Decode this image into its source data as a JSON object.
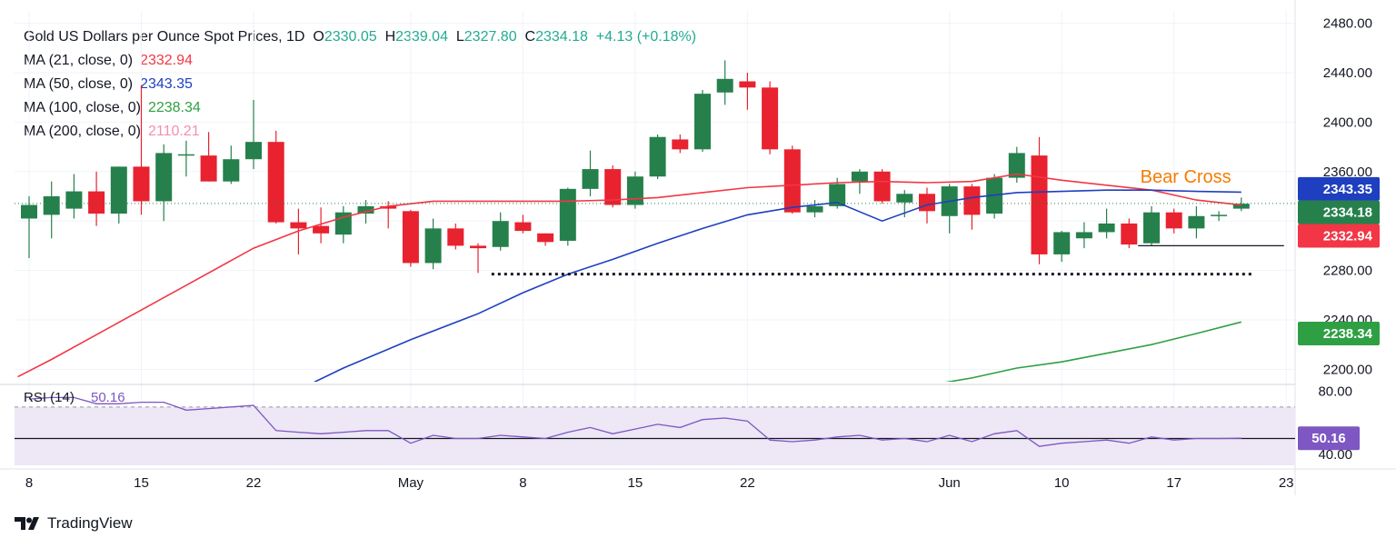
{
  "header": {
    "symbol": "Gold US Dollars per Ounce Spot Prices, 1D",
    "open_label": "O",
    "open": "2330.05",
    "high_label": "H",
    "high": "2339.04",
    "low_label": "L",
    "low": "2327.80",
    "close_label": "C",
    "close": "2334.18",
    "change": "+4.13 (+0.18%)"
  },
  "legend": [
    {
      "label": "MA (21, close, 0)",
      "value": "2332.94",
      "color": "#f23645"
    },
    {
      "label": "MA (50, close, 0)",
      "value": "2343.35",
      "color": "#1e3fbf"
    },
    {
      "label": "MA (100, close, 0)",
      "value": "2238.34",
      "color": "#2ea043"
    },
    {
      "label": "MA (200, close, 0)",
      "value": "2110.21",
      "color": "#f48fb1"
    }
  ],
  "chart_data": {
    "type": "candlestick",
    "title": "Gold US Dollars per Ounce Spot Prices, 1D",
    "ylim": [
      2190,
      2490
    ],
    "y_ticks": [
      2200,
      2240,
      2280,
      2320,
      2360,
      2400,
      2440,
      2480
    ],
    "y_tick_labels": [
      "2200.00",
      "2240.00",
      "2280.00",
      "2320.00",
      "2360.00",
      "2400.00",
      "2440.00",
      "2480.00"
    ],
    "x_ticks": [
      {
        "index": 0,
        "label": "8"
      },
      {
        "index": 5,
        "label": "15"
      },
      {
        "index": 10,
        "label": "22"
      },
      {
        "index": 17,
        "label": "May"
      },
      {
        "index": 22,
        "label": "8"
      },
      {
        "index": 27,
        "label": "15"
      },
      {
        "index": 32,
        "label": "22"
      },
      {
        "index": 41,
        "label": "Jun"
      },
      {
        "index": 46,
        "label": "10"
      },
      {
        "index": 51,
        "label": "17"
      },
      {
        "index": 56,
        "label": "23"
      }
    ],
    "candles": [
      {
        "o": 2322,
        "h": 2340,
        "l": 2290,
        "c": 2333
      },
      {
        "o": 2325,
        "h": 2352,
        "l": 2306,
        "c": 2340
      },
      {
        "o": 2330,
        "h": 2358,
        "l": 2322,
        "c": 2344
      },
      {
        "o": 2344,
        "h": 2360,
        "l": 2316,
        "c": 2326
      },
      {
        "o": 2326,
        "h": 2364,
        "l": 2318,
        "c": 2364
      },
      {
        "o": 2364,
        "h": 2430,
        "l": 2325,
        "c": 2336
      },
      {
        "o": 2336,
        "h": 2382,
        "l": 2320,
        "c": 2375
      },
      {
        "o": 2374,
        "h": 2385,
        "l": 2356,
        "c": 2374
      },
      {
        "o": 2373,
        "h": 2392,
        "l": 2352,
        "c": 2352
      },
      {
        "o": 2352,
        "h": 2381,
        "l": 2350,
        "c": 2370
      },
      {
        "o": 2370,
        "h": 2418,
        "l": 2362,
        "c": 2384
      },
      {
        "o": 2384,
        "h": 2393,
        "l": 2318,
        "c": 2319
      },
      {
        "o": 2319,
        "h": 2330,
        "l": 2293,
        "c": 2314
      },
      {
        "o": 2316,
        "h": 2331,
        "l": 2302,
        "c": 2310
      },
      {
        "o": 2309,
        "h": 2332,
        "l": 2302,
        "c": 2327
      },
      {
        "o": 2326,
        "h": 2337,
        "l": 2318,
        "c": 2332
      },
      {
        "o": 2332,
        "h": 2336,
        "l": 2314,
        "c": 2330
      },
      {
        "o": 2328,
        "h": 2329,
        "l": 2283,
        "c": 2286
      },
      {
        "o": 2286,
        "h": 2322,
        "l": 2281,
        "c": 2314
      },
      {
        "o": 2314,
        "h": 2318,
        "l": 2297,
        "c": 2300
      },
      {
        "o": 2300,
        "h": 2302,
        "l": 2278,
        "c": 2298
      },
      {
        "o": 2299,
        "h": 2327,
        "l": 2296,
        "c": 2320
      },
      {
        "o": 2319,
        "h": 2325,
        "l": 2310,
        "c": 2312
      },
      {
        "o": 2310,
        "h": 2310,
        "l": 2300,
        "c": 2303
      },
      {
        "o": 2304,
        "h": 2347,
        "l": 2300,
        "c": 2346
      },
      {
        "o": 2346,
        "h": 2377,
        "l": 2340,
        "c": 2362
      },
      {
        "o": 2362,
        "h": 2365,
        "l": 2331,
        "c": 2333
      },
      {
        "o": 2333,
        "h": 2360,
        "l": 2330,
        "c": 2356
      },
      {
        "o": 2356,
        "h": 2390,
        "l": 2354,
        "c": 2388
      },
      {
        "o": 2386,
        "h": 2390,
        "l": 2375,
        "c": 2378
      },
      {
        "o": 2378,
        "h": 2426,
        "l": 2376,
        "c": 2423
      },
      {
        "o": 2424,
        "h": 2450,
        "l": 2414,
        "c": 2435
      },
      {
        "o": 2433,
        "h": 2440,
        "l": 2410,
        "c": 2428
      },
      {
        "o": 2428,
        "h": 2433,
        "l": 2374,
        "c": 2378
      },
      {
        "o": 2378,
        "h": 2381,
        "l": 2326,
        "c": 2327
      },
      {
        "o": 2327,
        "h": 2337,
        "l": 2323,
        "c": 2332
      },
      {
        "o": 2332,
        "h": 2355,
        "l": 2330,
        "c": 2350
      },
      {
        "o": 2352,
        "h": 2362,
        "l": 2342,
        "c": 2360
      },
      {
        "o": 2360,
        "h": 2362,
        "l": 2334,
        "c": 2336
      },
      {
        "o": 2335,
        "h": 2345,
        "l": 2323,
        "c": 2342
      },
      {
        "o": 2342,
        "h": 2347,
        "l": 2318,
        "c": 2328
      },
      {
        "o": 2324,
        "h": 2350,
        "l": 2310,
        "c": 2348
      },
      {
        "o": 2348,
        "h": 2350,
        "l": 2313,
        "c": 2325
      },
      {
        "o": 2326,
        "h": 2358,
        "l": 2322,
        "c": 2355
      },
      {
        "o": 2355,
        "h": 2380,
        "l": 2351,
        "c": 2375
      },
      {
        "o": 2373,
        "h": 2388,
        "l": 2285,
        "c": 2293
      },
      {
        "o": 2293,
        "h": 2312,
        "l": 2287,
        "c": 2311
      },
      {
        "o": 2306,
        "h": 2319,
        "l": 2298,
        "c": 2311
      },
      {
        "o": 2311,
        "h": 2330,
        "l": 2306,
        "c": 2318
      },
      {
        "o": 2318,
        "h": 2322,
        "l": 2298,
        "c": 2301
      },
      {
        "o": 2302,
        "h": 2332,
        "l": 2300,
        "c": 2327
      },
      {
        "o": 2327,
        "h": 2330,
        "l": 2310,
        "c": 2314
      },
      {
        "o": 2314,
        "h": 2332,
        "l": 2306,
        "c": 2324
      },
      {
        "o": 2324,
        "h": 2328,
        "l": 2320,
        "c": 2325
      },
      {
        "o": 2330,
        "h": 2339,
        "l": 2328,
        "c": 2334
      }
    ],
    "moving_averages": [
      {
        "name": "MA 21",
        "color": "#f23645",
        "points": [
          [
            -0.5,
            2194
          ],
          [
            1,
            2208
          ],
          [
            4,
            2238
          ],
          [
            7,
            2268
          ],
          [
            10,
            2298
          ],
          [
            12,
            2312
          ],
          [
            14,
            2323
          ],
          [
            16,
            2332
          ],
          [
            18,
            2336
          ],
          [
            20,
            2336
          ],
          [
            22,
            2336
          ],
          [
            24,
            2336
          ],
          [
            26,
            2337
          ],
          [
            28,
            2339
          ],
          [
            30,
            2343
          ],
          [
            32,
            2347
          ],
          [
            34,
            2349
          ],
          [
            36,
            2351
          ],
          [
            38,
            2352
          ],
          [
            40,
            2351
          ],
          [
            42,
            2352
          ],
          [
            44,
            2358
          ],
          [
            46,
            2353
          ],
          [
            48,
            2349
          ],
          [
            50,
            2345
          ],
          [
            52,
            2337
          ],
          [
            54,
            2332.94
          ]
        ]
      },
      {
        "name": "MA 50",
        "color": "#1e3fbf",
        "points": [
          [
            11.6,
            2180
          ],
          [
            14,
            2201
          ],
          [
            17,
            2224
          ],
          [
            20,
            2245
          ],
          [
            22,
            2262
          ],
          [
            24,
            2277
          ],
          [
            26,
            2289
          ],
          [
            28,
            2302
          ],
          [
            30,
            2314
          ],
          [
            32,
            2325
          ],
          [
            34,
            2331
          ],
          [
            36,
            2335
          ],
          [
            38,
            2320
          ],
          [
            40,
            2333
          ],
          [
            42,
            2339
          ],
          [
            44,
            2343
          ],
          [
            46,
            2344
          ],
          [
            48,
            2345
          ],
          [
            50,
            2345
          ],
          [
            52,
            2344
          ],
          [
            54,
            2343.35
          ]
        ]
      },
      {
        "name": "MA 100",
        "color": "#2ea043",
        "points": [
          [
            37.8,
            2180
          ],
          [
            40,
            2187
          ],
          [
            42,
            2193
          ],
          [
            44,
            2201
          ],
          [
            46,
            2206
          ],
          [
            48,
            2213
          ],
          [
            50,
            2220
          ],
          [
            52,
            2229
          ],
          [
            54,
            2238.34
          ]
        ]
      }
    ],
    "reference_lines": [
      {
        "y": 2300,
        "from": 49.4,
        "to": 55.9,
        "style": "solid"
      },
      {
        "y": 2277,
        "from": 20.6,
        "to": 54.6,
        "style": "dotted"
      }
    ],
    "annotation": {
      "text": "Bear Cross",
      "color": "#f57c00",
      "index": 49.5,
      "y": 2351
    },
    "price_labels": [
      {
        "text": "2343.35",
        "y": 2346,
        "bg": "#1e3fbf"
      },
      {
        "text": "2334.18",
        "y": 2327,
        "bg": "#26804c"
      },
      {
        "text": "2332.94",
        "y": 2308,
        "bg": "#f23645"
      },
      {
        "text": "2238.34",
        "y": 2229,
        "bg": "#2ea043"
      }
    ],
    "current_price": 2334.18,
    "rsi": {
      "label": "RSI (14)",
      "value": "50.16",
      "ylim": [
        33,
        82
      ],
      "y_ticks": [
        80,
        40
      ],
      "y_tick_labels": [
        "80.00",
        "40.00"
      ],
      "upper_band": 70,
      "lower_band": 30,
      "mid_line": 50,
      "values": [
        75,
        76,
        76,
        72,
        72,
        73,
        73,
        68,
        69,
        70,
        71,
        55,
        54,
        53,
        54,
        55,
        55,
        47,
        52,
        50,
        50,
        52,
        51,
        50,
        54,
        57,
        53,
        56,
        59,
        57,
        62,
        63,
        61,
        49,
        48,
        49,
        51,
        52,
        49,
        50,
        48,
        52,
        48,
        53,
        55,
        45,
        47,
        48,
        49,
        47,
        51,
        49,
        50,
        50,
        50.16
      ]
    }
  },
  "colors": {
    "up": "#26804c",
    "down": "#e8222f",
    "rsi": "#7e57c2",
    "rsi_band": "#ede7f6",
    "grid": "#f0f3fa",
    "axis_text": "#131722"
  },
  "brand": {
    "name": "TradingView"
  }
}
